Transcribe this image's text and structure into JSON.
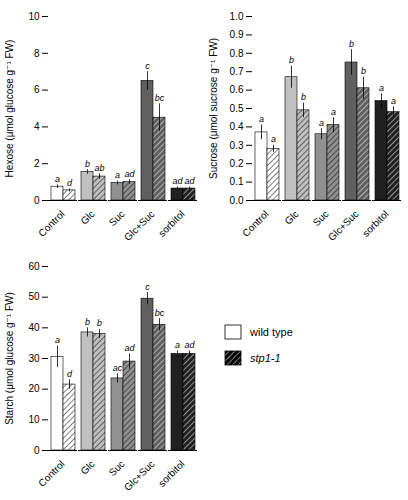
{
  "chart_data": [
    {
      "type": "bar",
      "categories": [
        "Control",
        "Glc",
        "Suc",
        "Glc+Suc",
        "sorbitol"
      ],
      "colors": [
        "white",
        "#c0c0c0",
        "#909090",
        "#606060",
        "#202020"
      ],
      "ylabel": "Hexose (μmol glucose g⁻¹ FW)",
      "ylim": [
        0,
        10
      ],
      "yticks": [
        0,
        2,
        4,
        6,
        8,
        10
      ],
      "grid": false,
      "series": [
        {
          "name": "wild type",
          "color": "white",
          "values": [
            0.75,
            1.55,
            0.95,
            6.5,
            0.65
          ],
          "errors": [
            0.1,
            0.12,
            0.1,
            0.5,
            0.08
          ],
          "letters": [
            "a",
            "b",
            "a",
            "c",
            "ad"
          ]
        },
        {
          "name": "stp1-1",
          "color": "black",
          "values": [
            0.55,
            1.3,
            1.0,
            4.5,
            0.65
          ],
          "errors": [
            0.08,
            0.15,
            0.12,
            0.75,
            0.08
          ],
          "letters": [
            "d",
            "ab",
            "ad",
            "bc",
            "ad"
          ]
        }
      ]
    },
    {
      "type": "bar",
      "categories": [
        "Control",
        "Glc",
        "Suc",
        "Glc+Suc",
        "sorbitol"
      ],
      "colors": [
        "white",
        "#c0c0c0",
        "#909090",
        "#606060",
        "#202020"
      ],
      "ylabel": "Sucrose (μmol sucrose g⁻¹ FW)",
      "ylim": [
        0,
        1.0
      ],
      "yticks": [
        {
          "value": 0,
          "label": "0.0"
        },
        0.1,
        0.2,
        0.3,
        0.4,
        0.5,
        0.6,
        0.7,
        0.8,
        0.9,
        {
          "value": 1.0,
          "label": "1.0"
        }
      ],
      "grid": false,
      "series": [
        {
          "name": "wild type",
          "color": "white",
          "values": [
            0.37,
            0.67,
            0.36,
            0.75,
            0.54
          ],
          "errors": [
            0.04,
            0.06,
            0.03,
            0.07,
            0.04
          ],
          "letters": [
            "a",
            "b",
            "a",
            "b",
            "a"
          ]
        },
        {
          "name": "stp1-1",
          "color": "black",
          "values": [
            0.28,
            0.49,
            0.41,
            0.61,
            0.48
          ],
          "errors": [
            0.02,
            0.04,
            0.04,
            0.06,
            0.03
          ],
          "letters": [
            "a",
            "b",
            "a",
            "b",
            "a"
          ]
        }
      ]
    },
    {
      "type": "bar",
      "categories": [
        "Control",
        "Glc",
        "Suc",
        "Glc+Suc",
        "sorbitol"
      ],
      "colors": [
        "white",
        "#c0c0c0",
        "#909090",
        "#606060",
        "#202020"
      ],
      "ylabel": "Starch (μmol glucose g⁻¹ FW)",
      "ylim": [
        0,
        60
      ],
      "yticks": [
        0,
        10,
        20,
        30,
        40,
        50,
        60
      ],
      "grid": false,
      "legend": "right",
      "series": [
        {
          "name": "wild type",
          "color": "white",
          "values": [
            30.5,
            38.5,
            23.5,
            49.5,
            31.5
          ],
          "errors": [
            3.5,
            1.5,
            1.5,
            2.0,
            1.0
          ],
          "letters": [
            "a",
            "b",
            "ac",
            "c",
            "a"
          ]
        },
        {
          "name": "stp1-1",
          "color": "black",
          "values": [
            21.5,
            38.0,
            29.0,
            41.0,
            31.5
          ],
          "errors": [
            1.5,
            1.5,
            2.5,
            2.0,
            1.0
          ],
          "letters": [
            "d",
            "b",
            "ad",
            "bc",
            "ad"
          ]
        }
      ]
    }
  ]
}
